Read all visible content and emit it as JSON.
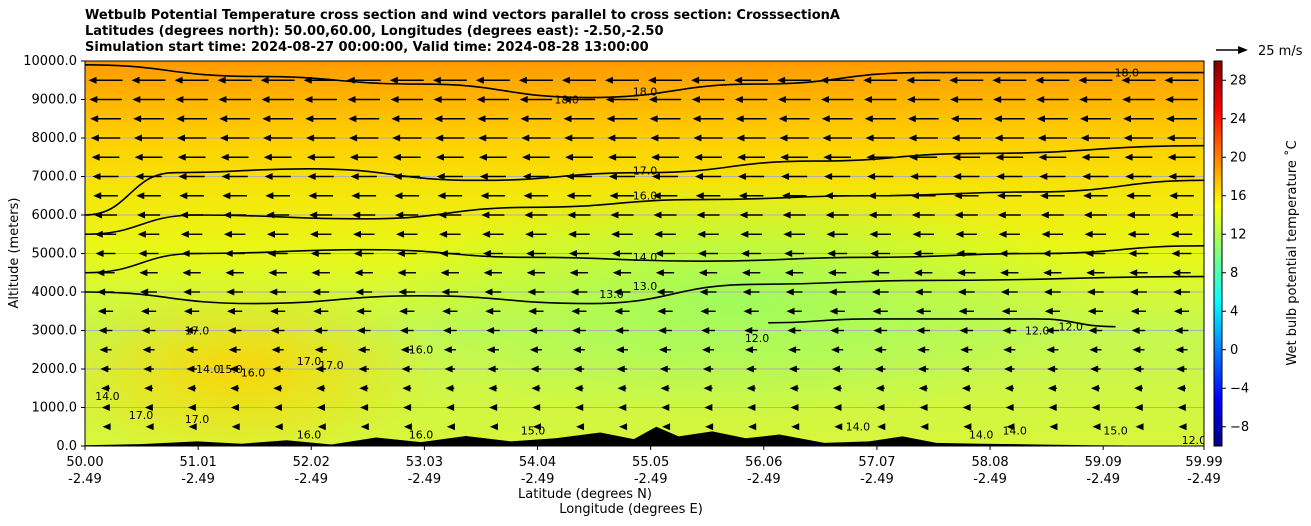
{
  "title_lines": [
    "Wetbulb Potential Temperature cross section and wind vectors parallel to cross section: CrosssectionA",
    "Latitudes (degrees north): 50.00,60.00, Longitudes (degrees east): -2.50,-2.50",
    "Simulation start time: 2024-08-27 00:00:00, Valid time: 2024-08-28 13:00:00"
  ],
  "quiver_key": "25 m/s",
  "colors": {
    "contour": "#000000",
    "terrain": "#000000",
    "grid": "#b0b0b0",
    "colormap": [
      "#00007f",
      "#0000ff",
      "#007fff",
      "#00ffff",
      "#7fff7f",
      "#ffff00",
      "#ff7f00",
      "#ff0000",
      "#7f0000"
    ]
  },
  "chart_data": {
    "type": "heatmap",
    "subtype": "vertical cross section with contours, wind vectors and terrain",
    "xlabel_lat": "Latitude (degrees N)",
    "xlabel_lon": "Longitude (degrees E)",
    "ylabel": "Altitude (meters)",
    "x_ticks": [
      {
        "lat": "50.00",
        "lon": "-2.49"
      },
      {
        "lat": "51.01",
        "lon": "-2.49"
      },
      {
        "lat": "52.02",
        "lon": "-2.49"
      },
      {
        "lat": "53.03",
        "lon": "-2.49"
      },
      {
        "lat": "54.04",
        "lon": "-2.49"
      },
      {
        "lat": "55.05",
        "lon": "-2.49"
      },
      {
        "lat": "56.06",
        "lon": "-2.49"
      },
      {
        "lat": "57.07",
        "lon": "-2.49"
      },
      {
        "lat": "58.08",
        "lon": "-2.49"
      },
      {
        "lat": "59.09",
        "lon": "-2.49"
      },
      {
        "lat": "59.99",
        "lon": "-2.49"
      }
    ],
    "xlim": [
      50.0,
      59.99
    ],
    "ylim": [
      0,
      10000
    ],
    "y_ticks": [
      "0.0",
      "1000.0",
      "2000.0",
      "3000.0",
      "4000.0",
      "5000.0",
      "6000.0",
      "7000.0",
      "8000.0",
      "9000.0",
      "10000.0"
    ],
    "grid": "horizontal",
    "colorbar": {
      "label": "Wet bulb potential temperature ˚C",
      "range": [
        -10,
        30
      ],
      "ticks": [
        "−8",
        "−4",
        "0",
        "4",
        "8",
        "12",
        "16",
        "20",
        "24",
        "28"
      ]
    },
    "contour_levels": [
      12,
      13,
      14,
      15,
      16,
      17,
      18
    ],
    "contours": [
      {
        "level": 18.0,
        "points": [
          [
            50.0,
            9900
          ],
          [
            51.5,
            9600
          ],
          [
            53.0,
            9400
          ],
          [
            54.5,
            9050
          ],
          [
            56.0,
            9400
          ],
          [
            57.5,
            9700
          ],
          [
            59.99,
            9700
          ]
        ]
      },
      {
        "level": 17.0,
        "points": [
          [
            50.0,
            6000
          ],
          [
            50.8,
            7100
          ],
          [
            52.0,
            7200
          ],
          [
            53.5,
            6900
          ],
          [
            55.0,
            7100
          ],
          [
            56.5,
            7400
          ],
          [
            58.0,
            7600
          ],
          [
            59.99,
            7800
          ]
        ]
      },
      {
        "level": 16.0,
        "points": [
          [
            50.0,
            5500
          ],
          [
            51.0,
            6000
          ],
          [
            52.5,
            5900
          ],
          [
            54.0,
            6200
          ],
          [
            55.5,
            6400
          ],
          [
            57.0,
            6500
          ],
          [
            58.5,
            6600
          ],
          [
            59.99,
            6900
          ]
        ]
      },
      {
        "level": 14.0,
        "points": [
          [
            50.0,
            4500
          ],
          [
            51.0,
            5000
          ],
          [
            52.5,
            5100
          ],
          [
            54.0,
            4900
          ],
          [
            55.5,
            4800
          ],
          [
            57.0,
            4900
          ],
          [
            58.5,
            5000
          ],
          [
            59.99,
            5200
          ]
        ]
      },
      {
        "level": 13.0,
        "points": [
          [
            50.0,
            4000
          ],
          [
            51.5,
            3700
          ],
          [
            53.0,
            3900
          ],
          [
            54.5,
            3700
          ],
          [
            56.0,
            4200
          ],
          [
            57.5,
            4300
          ],
          [
            59.99,
            4400
          ]
        ]
      },
      {
        "level": 12.0,
        "points": [
          [
            56.1,
            3200
          ],
          [
            57.0,
            3300
          ],
          [
            58.5,
            3300
          ],
          [
            59.2,
            3100
          ]
        ]
      }
    ],
    "contour_labels": [
      {
        "text": "18.0",
        "x": 54.3,
        "y": 8900
      },
      {
        "text": "18.0",
        "x": 55.0,
        "y": 9100
      },
      {
        "text": "18.0",
        "x": 59.3,
        "y": 9600
      },
      {
        "text": "17.0",
        "x": 55.0,
        "y": 7050
      },
      {
        "text": "16.0",
        "x": 55.0,
        "y": 6400
      },
      {
        "text": "14.0",
        "x": 55.0,
        "y": 4800
      },
      {
        "text": "13.0",
        "x": 55.0,
        "y": 4050
      },
      {
        "text": "13.0",
        "x": 54.7,
        "y": 3850
      },
      {
        "text": "12.0",
        "x": 56.0,
        "y": 2700
      },
      {
        "text": "12.0",
        "x": 58.5,
        "y": 2900
      },
      {
        "text": "12.0",
        "x": 58.8,
        "y": 3000
      },
      {
        "text": "12.0",
        "x": 59.9,
        "y": 50
      },
      {
        "text": "17.0",
        "x": 51.0,
        "y": 2900
      },
      {
        "text": "16.0",
        "x": 53.0,
        "y": 2400
      },
      {
        "text": "17.0",
        "x": 52.0,
        "y": 2100
      },
      {
        "text": "17.0",
        "x": 52.2,
        "y": 2000
      },
      {
        "text": "15.0",
        "x": 51.3,
        "y": 1900
      },
      {
        "text": "14.0",
        "x": 51.1,
        "y": 1900
      },
      {
        "text": "16.0",
        "x": 51.5,
        "y": 1800
      },
      {
        "text": "14.0",
        "x": 50.2,
        "y": 1200
      },
      {
        "text": "17.0",
        "x": 50.5,
        "y": 700
      },
      {
        "text": "17.0",
        "x": 51.0,
        "y": 600
      },
      {
        "text": "16.0",
        "x": 52.0,
        "y": 200
      },
      {
        "text": "16.0",
        "x": 53.0,
        "y": 200
      },
      {
        "text": "15.0",
        "x": 54.0,
        "y": 300
      },
      {
        "text": "14.0",
        "x": 56.9,
        "y": 400
      },
      {
        "text": "14.0",
        "x": 58.0,
        "y": 200
      },
      {
        "text": "14.0",
        "x": 58.3,
        "y": 300
      },
      {
        "text": "15.0",
        "x": 59.2,
        "y": 300
      }
    ],
    "wind": {
      "direction": "southward (toward decreasing latitude)",
      "levels_m": [
        500,
        1000,
        1500,
        2000,
        2500,
        3000,
        3500,
        4000,
        4500,
        5000,
        5500,
        6000,
        6500,
        7000,
        7500,
        8000,
        8500,
        9000,
        9500
      ],
      "speed_top_ms": 25,
      "speed_bottom_ms": 3
    },
    "terrain": {
      "points": [
        [
          50.0,
          20
        ],
        [
          50.5,
          50
        ],
        [
          51.0,
          120
        ],
        [
          51.4,
          60
        ],
        [
          51.8,
          150
        ],
        [
          52.2,
          40
        ],
        [
          52.6,
          220
        ],
        [
          53.0,
          100
        ],
        [
          53.4,
          260
        ],
        [
          53.8,
          120
        ],
        [
          54.2,
          200
        ],
        [
          54.6,
          350
        ],
        [
          54.9,
          180
        ],
        [
          55.1,
          500
        ],
        [
          55.3,
          250
        ],
        [
          55.6,
          380
        ],
        [
          55.9,
          200
        ],
        [
          56.2,
          300
        ],
        [
          56.6,
          80
        ],
        [
          57.0,
          120
        ],
        [
          57.3,
          250
        ],
        [
          57.6,
          80
        ],
        [
          58.0,
          60
        ],
        [
          58.5,
          40
        ],
        [
          59.0,
          20
        ],
        [
          59.5,
          10
        ],
        [
          59.99,
          5
        ]
      ]
    }
  }
}
